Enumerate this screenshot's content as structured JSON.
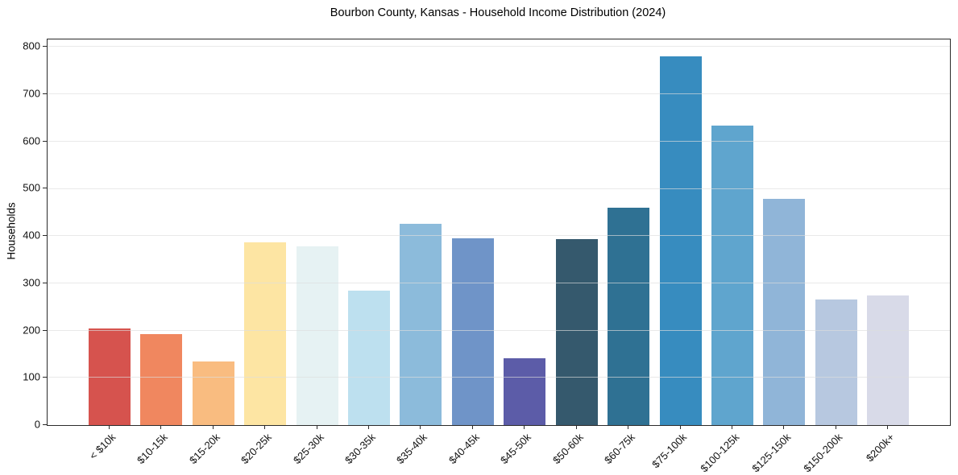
{
  "chart_data": {
    "type": "bar",
    "title": "Bourbon County, Kansas - Household Income Distribution (2024)",
    "ylabel": "Households",
    "xlabel": "",
    "categories": [
      "< $10k",
      "$10-15k",
      "$15-20k",
      "$20-25k",
      "$25-30k",
      "$30-35k",
      "$35-40k",
      "$40-45k",
      "$45-50k",
      "$50-60k",
      "$60-75k",
      "$75-100k",
      "$100-125k",
      "$125-150k",
      "$150-200k",
      "$200k+"
    ],
    "values": [
      204,
      192,
      135,
      386,
      379,
      284,
      426,
      395,
      141,
      393,
      460,
      780,
      633,
      479,
      265,
      275
    ],
    "bar_colors": [
      "#d6534e",
      "#f0875f",
      "#f9bc80",
      "#fde5a3",
      "#e6f2f3",
      "#bde0ef",
      "#8cbbdb",
      "#6f94c8",
      "#5c5ca8",
      "#35596d",
      "#2f7193",
      "#378cbf",
      "#5fa5ce",
      "#90b5d8",
      "#b7c8e0",
      "#d8dae8"
    ],
    "yticks": [
      0,
      100,
      200,
      300,
      400,
      500,
      600,
      700,
      800
    ],
    "ylim": [
      0,
      816
    ],
    "grid": "horizontal gridlines at y ticks, drawn above bars",
    "legend_position": "none",
    "spine_color": "#2b2b2b",
    "gridline_color": "#e8e8e8"
  }
}
